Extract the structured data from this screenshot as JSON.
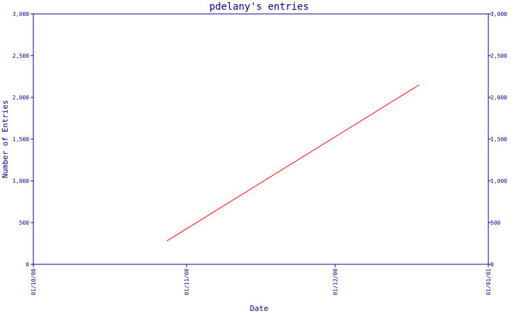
{
  "chart_data": {
    "type": "line",
    "title": "pdelany's entries",
    "xlabel": "Date",
    "ylabel": "Number of Entries",
    "x_ticks": [
      "01/10/00",
      "01/11/00",
      "01/12/00",
      "01/01/01"
    ],
    "y_ticks": [
      "0",
      "500",
      "1,000",
      "1,500",
      "2,000",
      "2,500",
      "3,000"
    ],
    "xlim": [
      "2000-10-01",
      "2001-01-01"
    ],
    "ylim": [
      0,
      3000
    ],
    "grid": false,
    "right_axis": true,
    "series": [
      {
        "x": [
          "2000-10-28",
          "2000-12-18"
        ],
        "y": [
          280,
          2150
        ]
      }
    ]
  },
  "colors": {
    "axis": "#000080",
    "line": "#ff0000",
    "background": "#ffffff"
  }
}
